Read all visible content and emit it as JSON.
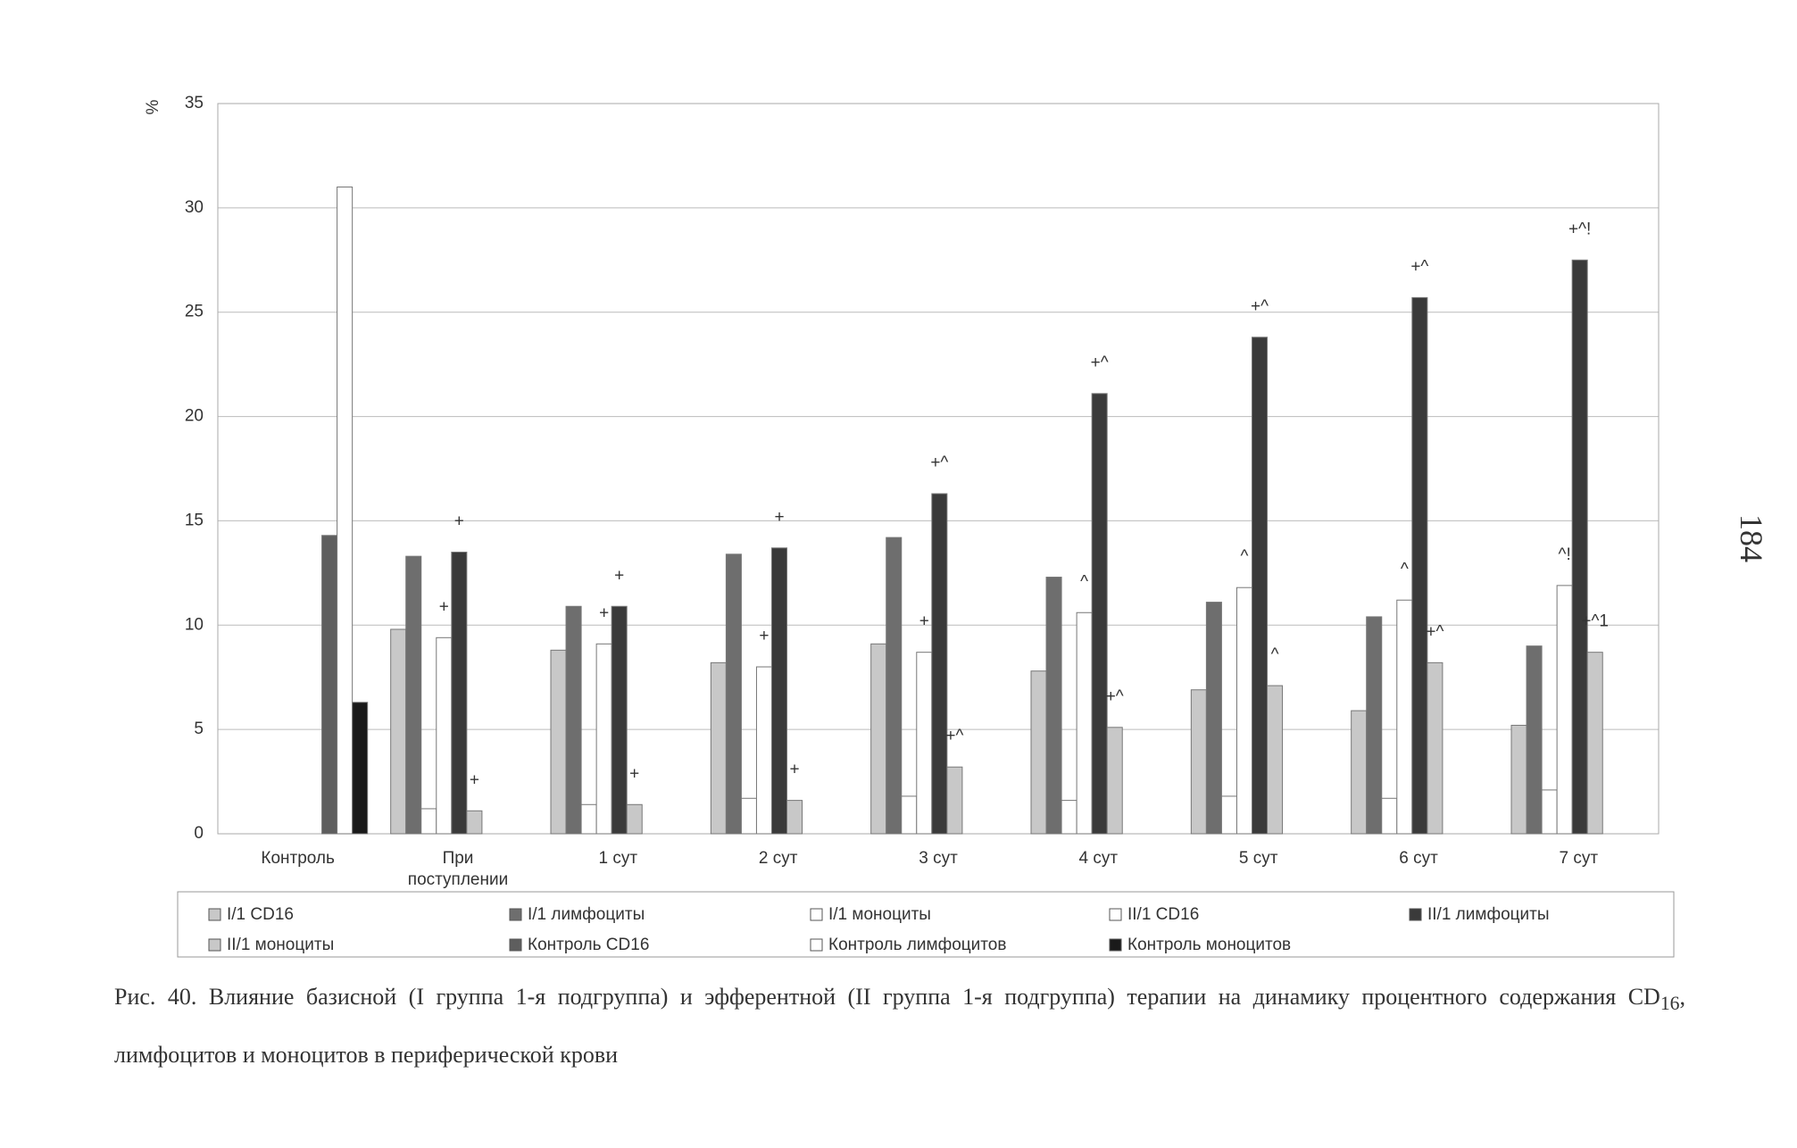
{
  "chart_data": {
    "type": "bar",
    "y_label": "%",
    "categories": [
      "Контроль",
      "При поступлении",
      "1 сут",
      "2 сут",
      "3 сут",
      "4 сут",
      "5 сут",
      "6 сут",
      "7 сут"
    ],
    "ylim": [
      0,
      35
    ],
    "yticks": [
      0,
      5,
      10,
      15,
      20,
      25,
      30,
      35
    ],
    "grid": true,
    "series": [
      {
        "name": "I/1 CD16",
        "color": "#c8c8c8",
        "values": [
          null,
          9.8,
          8.8,
          8.2,
          9.1,
          7.8,
          6.9,
          5.9,
          5.2
        ],
        "annotations": [
          null,
          null,
          null,
          null,
          null,
          null,
          null,
          null,
          null
        ]
      },
      {
        "name": "I/1 лимфоциты",
        "color": "#6e6e6e",
        "values": [
          null,
          13.3,
          10.9,
          13.4,
          14.2,
          12.3,
          11.1,
          10.4,
          9.0
        ],
        "annotations": [
          null,
          null,
          null,
          null,
          null,
          null,
          null,
          null,
          null
        ]
      },
      {
        "name": "I/1 моноциты",
        "color": "#ffffff",
        "values": [
          null,
          1.2,
          1.4,
          1.7,
          1.8,
          1.6,
          1.8,
          1.7,
          2.1
        ],
        "annotations": [
          null,
          null,
          null,
          null,
          null,
          null,
          null,
          null,
          null
        ]
      },
      {
        "name": "II/1 CD16",
        "color": "#ffffff",
        "values": [
          null,
          9.4,
          9.1,
          8.0,
          8.7,
          10.6,
          11.8,
          11.2,
          11.9
        ],
        "annotations": [
          null,
          "+",
          "+",
          "+",
          "+",
          "^",
          "^",
          "^",
          "^!"
        ]
      },
      {
        "name": "II/1 лимфоциты",
        "color": "#3a3a3a",
        "values": [
          null,
          13.5,
          10.9,
          13.7,
          16.3,
          21.1,
          23.8,
          25.7,
          27.5
        ],
        "annotations": [
          null,
          "+",
          "+",
          "+",
          "+^",
          "+^",
          "+^",
          "+^",
          "+^!"
        ]
      },
      {
        "name": "II/1 моноциты",
        "color": "#c8c8c8",
        "values": [
          null,
          1.1,
          1.4,
          1.6,
          3.2,
          5.1,
          7.1,
          8.2,
          8.7
        ],
        "annotations": [
          null,
          "+",
          "+",
          "+",
          "+^",
          "+^",
          "^",
          "+^",
          "+^1"
        ]
      },
      {
        "name": "Контроль CD16",
        "color": "#5e5e5e",
        "values": [
          14.3,
          null,
          null,
          null,
          null,
          null,
          null,
          null,
          null
        ],
        "annotations": [
          null,
          null,
          null,
          null,
          null,
          null,
          null,
          null,
          null
        ]
      },
      {
        "name": "Контроль лимфоцитов",
        "color": "#ffffff",
        "values": [
          31.0,
          null,
          null,
          null,
          null,
          null,
          null,
          null,
          null
        ],
        "annotations": [
          null,
          null,
          null,
          null,
          null,
          null,
          null,
          null,
          null
        ]
      },
      {
        "name": "Контроль моноцитов",
        "color": "#1a1a1a",
        "values": [
          6.3,
          null,
          null,
          null,
          null,
          null,
          null,
          null,
          null
        ],
        "annotations": [
          null,
          null,
          null,
          null,
          null,
          null,
          null,
          null,
          null
        ]
      }
    ],
    "caption_before": "Рис. 40. Влияние базисной (I группа 1-я подгруппа) и эфферентной (II группа 1-я подгруппа) терапии на динамику процентного содержания CD",
    "caption_sub": "16",
    "caption_after": ", лимфоцитов и моноцитов в периферической крови"
  },
  "page_number": "184"
}
